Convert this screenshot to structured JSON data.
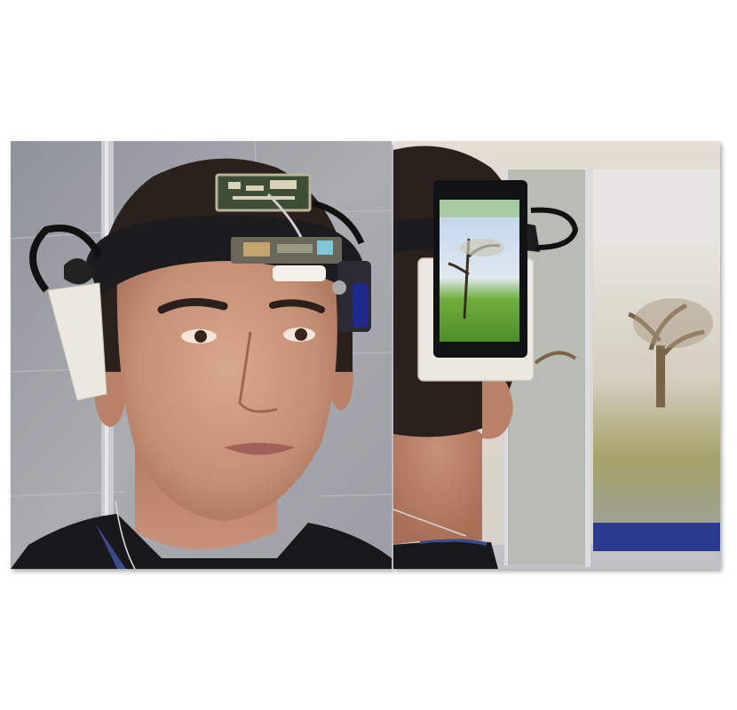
{
  "image": {
    "panels": [
      {
        "name": "left-photo"
      },
      {
        "name": "right-photo"
      }
    ],
    "colors": {
      "background": "#ffffff",
      "wall_tile": "#9ea1a7",
      "headband": "#1c1c1e",
      "skin": "#c9967c",
      "hair": "#2a201c",
      "sweater": "#18181a",
      "mount_white": "#ece8df",
      "screen_grass": "#5fa332",
      "screen_sky": "#bcd3ea",
      "projection_tree": "#8a7458"
    }
  }
}
